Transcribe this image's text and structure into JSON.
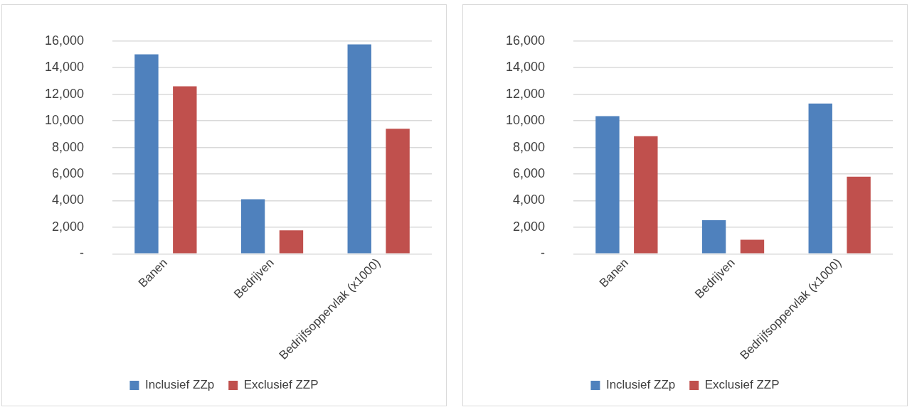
{
  "chart_data": [
    {
      "type": "bar",
      "categories": [
        "Banen",
        "Bedrijven",
        "Bedrijfsoppervlak (x1000)"
      ],
      "series": [
        {
          "name": "Inclusief ZZp",
          "color": "#4f81bd",
          "values": [
            15000,
            4100,
            15750
          ]
        },
        {
          "name": "Exclusief ZZP",
          "color": "#c0504d",
          "values": [
            12600,
            1770,
            9400
          ]
        }
      ],
      "ylim": [
        0,
        16000
      ],
      "yticks": [
        {
          "value": 0,
          "label": "-"
        },
        {
          "value": 2000,
          "label": "2,000"
        },
        {
          "value": 4000,
          "label": "4,000"
        },
        {
          "value": 6000,
          "label": "6,000"
        },
        {
          "value": 8000,
          "label": "8,000"
        },
        {
          "value": 10000,
          "label": "10,000"
        },
        {
          "value": 12000,
          "label": "12,000"
        },
        {
          "value": 14000,
          "label": "14,000"
        },
        {
          "value": 16000,
          "label": "16,000"
        }
      ],
      "grid": "y",
      "legend": "bottom"
    },
    {
      "type": "bar",
      "categories": [
        "Banen",
        "Bedrijven",
        "Bedrijfsoppervlak (x1000)"
      ],
      "series": [
        {
          "name": "Inclusief ZZp",
          "color": "#4f81bd",
          "values": [
            10350,
            2530,
            11300
          ]
        },
        {
          "name": "Exclusief ZZP",
          "color": "#c0504d",
          "values": [
            8850,
            1050,
            5800
          ]
        }
      ],
      "ylim": [
        0,
        16000
      ],
      "yticks": [
        {
          "value": 0,
          "label": "-"
        },
        {
          "value": 2000,
          "label": "2,000"
        },
        {
          "value": 4000,
          "label": "4,000"
        },
        {
          "value": 6000,
          "label": "6,000"
        },
        {
          "value": 8000,
          "label": "8,000"
        },
        {
          "value": 10000,
          "label": "10,000"
        },
        {
          "value": 12000,
          "label": "12,000"
        },
        {
          "value": 14000,
          "label": "14,000"
        },
        {
          "value": 16000,
          "label": "16,000"
        }
      ],
      "grid": "y",
      "legend": "bottom"
    }
  ]
}
